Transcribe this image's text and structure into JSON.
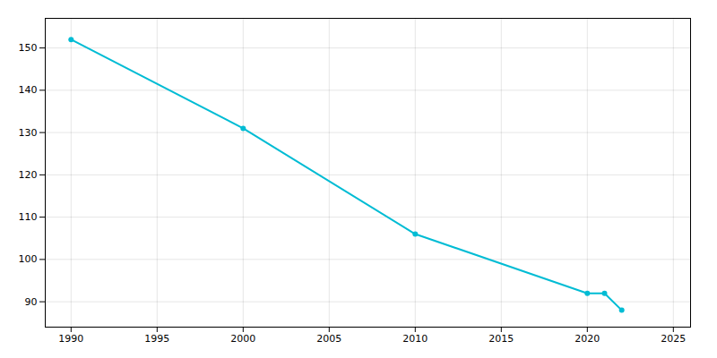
{
  "chart_data": {
    "type": "line",
    "x": [
      1990,
      2000,
      2010,
      2020,
      2021,
      2022
    ],
    "values": [
      152,
      131,
      106,
      92,
      92,
      88
    ],
    "color": "#00bcd4",
    "marker": "circle",
    "xlim": [
      1988.5,
      2026
    ],
    "ylim": [
      84,
      157
    ],
    "xticks": [
      1990,
      1995,
      2000,
      2005,
      2010,
      2015,
      2020,
      2025
    ],
    "yticks": [
      90,
      100,
      110,
      120,
      130,
      140,
      150
    ],
    "grid": true
  }
}
